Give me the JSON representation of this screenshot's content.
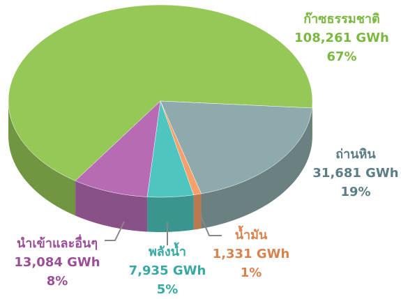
{
  "chart_data": {
    "type": "pie",
    "categories": [
      "ก๊าซธรรมชาติ",
      "ถ่านหิน",
      "น้ำมัน",
      "พลังน้ำ",
      "นำเข้าและอื่นๆ"
    ],
    "values": [
      108261,
      31681,
      1331,
      7935,
      13084
    ],
    "value_labels": [
      "108,261 GWh",
      "31,681 GWh",
      "1,331 GWh",
      "7,935 GWh",
      "13,084 GWh"
    ],
    "percentages": [
      67,
      19,
      1,
      5,
      8
    ],
    "percentage_labels": [
      "67%",
      "19%",
      "1%",
      "5%",
      "8%"
    ],
    "colors": [
      "#95c857",
      "#8faaac",
      "#f7a06b",
      "#4ec6bf",
      "#b86bb5"
    ]
  }
}
